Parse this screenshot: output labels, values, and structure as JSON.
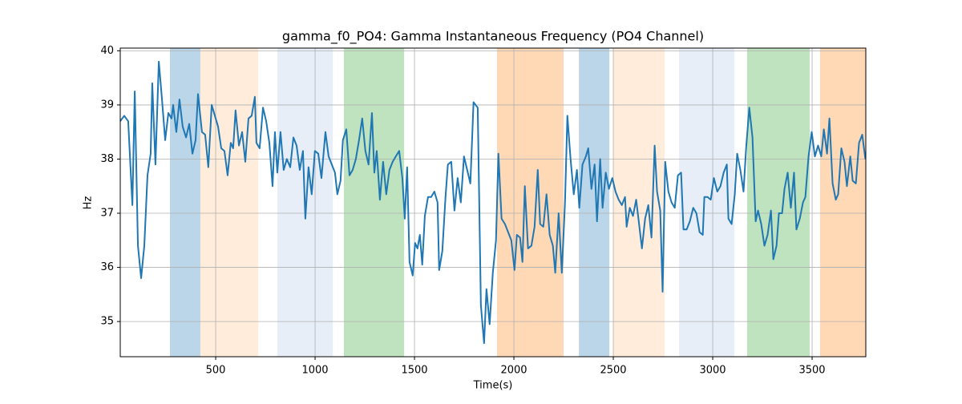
{
  "chart_data": {
    "type": "line",
    "title": "gamma_f0_PO4: Gamma Instantaneous Frequency (PO4 Channel)",
    "x_label": "Time(s)",
    "y_label": "Hz",
    "color": "#1f77b4",
    "xlim": [
      20,
      3770
    ],
    "ylim": [
      34.35,
      40.05
    ],
    "xticks": [
      500,
      1000,
      1500,
      2000,
      2500,
      3000,
      3500
    ],
    "yticks": [
      35,
      36,
      37,
      38,
      39,
      40
    ],
    "grid": true,
    "spans": [
      {
        "start": 270,
        "end": 423,
        "color": "#1f77b4",
        "opacity": 0.3
      },
      {
        "start": 423,
        "end": 714,
        "color": "#ff7f0e",
        "opacity": 0.15
      },
      {
        "start": 810,
        "end": 1089,
        "color": "#aec7e8",
        "opacity": 0.3
      },
      {
        "start": 1145,
        "end": 1448,
        "color": "#2ca02c",
        "opacity": 0.3
      },
      {
        "start": 1915,
        "end": 2250,
        "color": "#ff7f0e",
        "opacity": 0.3
      },
      {
        "start": 2327,
        "end": 2480,
        "color": "#1f77b4",
        "opacity": 0.3
      },
      {
        "start": 2500,
        "end": 2758,
        "color": "#ff7f0e",
        "opacity": 0.15
      },
      {
        "start": 2831,
        "end": 3109,
        "color": "#aec7e8",
        "opacity": 0.3
      },
      {
        "start": 3173,
        "end": 3488,
        "color": "#2ca02c",
        "opacity": 0.3
      },
      {
        "start": 3540,
        "end": 3770,
        "color": "#ff7f0e",
        "opacity": 0.3
      }
    ],
    "x": [
      20,
      40,
      60,
      81,
      93,
      109,
      125,
      141,
      157,
      173,
      181,
      197,
      214,
      230,
      246,
      262,
      278,
      286,
      302,
      318,
      334,
      351,
      367,
      383,
      399,
      411,
      431,
      447,
      463,
      480,
      496,
      512,
      528,
      544,
      560,
      576,
      588,
      600,
      617,
      633,
      649,
      665,
      681,
      697,
      705,
      721,
      738,
      754,
      770,
      786,
      798,
      810,
      826,
      842,
      858,
      875,
      891,
      907,
      923,
      939,
      951,
      967,
      983,
      999,
      1016,
      1032,
      1052,
      1068,
      1084,
      1100,
      1112,
      1128,
      1140,
      1157,
      1173,
      1189,
      1205,
      1221,
      1237,
      1253,
      1269,
      1286,
      1298,
      1310,
      1326,
      1342,
      1358,
      1374,
      1390,
      1406,
      1423,
      1439,
      1451,
      1463,
      1475,
      1491,
      1503,
      1515,
      1527,
      1539,
      1552,
      1568,
      1584,
      1600,
      1616,
      1624,
      1640,
      1656,
      1668,
      1685,
      1701,
      1717,
      1733,
      1749,
      1765,
      1781,
      1797,
      1818,
      1834,
      1850,
      1862,
      1878,
      1894,
      1910,
      1922,
      1938,
      1955,
      1971,
      1987,
      2003,
      2015,
      2031,
      2043,
      2055,
      2071,
      2088,
      2104,
      2120,
      2132,
      2148,
      2164,
      2180,
      2196,
      2208,
      2225,
      2241,
      2257,
      2269,
      2285,
      2301,
      2317,
      2329,
      2345,
      2362,
      2374,
      2390,
      2406,
      2418,
      2434,
      2446,
      2462,
      2478,
      2495,
      2511,
      2527,
      2543,
      2559,
      2567,
      2583,
      2599,
      2615,
      2628,
      2644,
      2660,
      2676,
      2692,
      2708,
      2720,
      2736,
      2748,
      2761,
      2777,
      2793,
      2809,
      2825,
      2841,
      2853,
      2869,
      2885,
      2902,
      2918,
      2934,
      2950,
      2958,
      2974,
      2990,
      3006,
      3023,
      3039,
      3055,
      3071,
      3079,
      3095,
      3111,
      3123,
      3139,
      3155,
      3168,
      3184,
      3200,
      3216,
      3228,
      3244,
      3260,
      3276,
      3293,
      3305,
      3321,
      3333,
      3349,
      3361,
      3377,
      3393,
      3409,
      3421,
      3438,
      3454,
      3466,
      3482,
      3498,
      3514,
      3530,
      3546,
      3559,
      3575,
      3587,
      3603,
      3619,
      3631,
      3647,
      3663,
      3675,
      3692,
      3704,
      3720,
      3736,
      3752,
      3768
    ],
    "values": [
      38.7,
      38.8,
      38.7,
      37.15,
      39.25,
      36.4,
      35.8,
      36.4,
      37.7,
      38.1,
      39.4,
      37.9,
      39.8,
      39.1,
      38.35,
      38.85,
      38.75,
      39.0,
      38.5,
      39.1,
      38.6,
      38.4,
      38.65,
      38.1,
      38.35,
      39.2,
      38.5,
      38.45,
      37.85,
      39.0,
      38.8,
      38.6,
      38.2,
      38.15,
      37.7,
      38.3,
      38.2,
      38.9,
      38.25,
      38.5,
      37.95,
      38.75,
      38.8,
      39.15,
      38.3,
      38.2,
      38.95,
      38.7,
      38.3,
      37.5,
      38.5,
      37.75,
      38.5,
      37.8,
      38.0,
      37.85,
      38.4,
      38.25,
      37.8,
      38.15,
      36.9,
      37.85,
      37.35,
      38.15,
      38.1,
      37.65,
      38.5,
      38.05,
      37.9,
      37.75,
      37.35,
      37.6,
      38.35,
      38.55,
      37.7,
      37.8,
      38.0,
      38.35,
      38.75,
      38.15,
      37.9,
      38.85,
      37.75,
      38.15,
      37.25,
      37.95,
      37.35,
      37.8,
      37.95,
      38.05,
      38.15,
      37.65,
      36.9,
      37.85,
      36.1,
      35.85,
      36.45,
      36.35,
      36.6,
      36.05,
      36.95,
      37.3,
      37.3,
      37.4,
      37.2,
      35.95,
      36.3,
      37.3,
      37.9,
      37.95,
      37.05,
      37.65,
      37.2,
      38.05,
      37.8,
      37.55,
      39.05,
      38.95,
      35.3,
      34.6,
      35.6,
      34.95,
      35.9,
      36.5,
      38.1,
      36.9,
      36.8,
      36.65,
      36.5,
      35.95,
      36.6,
      36.55,
      36.1,
      37.5,
      36.35,
      36.4,
      36.75,
      37.8,
      36.8,
      36.75,
      37.35,
      36.6,
      36.4,
      35.9,
      37.0,
      35.9,
      37.2,
      38.8,
      38.0,
      37.35,
      37.8,
      37.1,
      37.9,
      38.05,
      38.2,
      37.45,
      37.9,
      36.85,
      38.0,
      37.1,
      37.75,
      37.45,
      37.65,
      37.4,
      37.25,
      37.15,
      37.3,
      36.75,
      37.1,
      36.95,
      37.25,
      36.85,
      36.35,
      36.9,
      37.15,
      36.55,
      38.25,
      37.4,
      37.05,
      35.55,
      37.95,
      37.4,
      37.2,
      37.1,
      37.7,
      37.75,
      36.7,
      36.7,
      36.85,
      37.1,
      37.0,
      36.65,
      36.6,
      37.3,
      37.3,
      37.25,
      37.65,
      37.4,
      37.5,
      37.75,
      37.9,
      36.9,
      36.8,
      37.35,
      38.1,
      37.8,
      37.4,
      38.2,
      38.95,
      38.4,
      36.85,
      37.05,
      36.8,
      36.4,
      36.6,
      37.05,
      36.15,
      36.4,
      37.0,
      37.0,
      37.45,
      37.75,
      37.1,
      37.75,
      36.7,
      36.9,
      37.2,
      37.3,
      38.05,
      38.5,
      38.05,
      38.25,
      38.05,
      38.55,
      38.1,
      38.75,
      37.55,
      37.25,
      37.35,
      38.2,
      37.95,
      37.5,
      38.05,
      37.6,
      37.55,
      38.3,
      38.45,
      38.0
    ]
  }
}
